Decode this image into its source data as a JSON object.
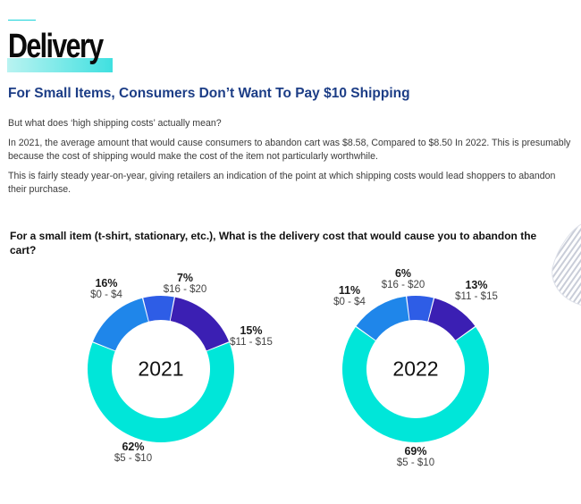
{
  "header": {
    "title": "Delivery",
    "headline": "For Small Items, Consumers Don’t Want To Pay $10 Shipping"
  },
  "body": {
    "p1": "But what does ‘high shipping costs’ actually mean?",
    "p2": "In 2021, the average amount that would cause consumers to abandon cart was $8.58, Compared to $8.50 In 2022. This is presumably because the cost of shipping would make the cost of the item not particularly worthwhile.",
    "p3": "This is fairly steady year-on-year, giving retailers an indication of the point at which shipping costs would lead shoppers to abandon their purchase.",
    "question": "For a small item (t-shirt, stationary, etc.), What is the delivery cost that would cause you to abandon the cart?"
  },
  "colors": {
    "accent": "#19d3d9",
    "headline": "#1c3d86",
    "slice_5_10": "#00e6d9",
    "slice_11_15": "#1f86ea",
    "slice_16_20": "#2e5de6",
    "slice_0_4": "#3b1fb3"
  },
  "chart_data": [
    {
      "type": "pie",
      "center_label": "2021",
      "slices": [
        {
          "label": "$5 - $10",
          "value": 62,
          "pct_label": "62%",
          "color": "#00e6d9"
        },
        {
          "label": "$11 - $15",
          "value": 15,
          "pct_label": "15%",
          "color": "#1f86ea"
        },
        {
          "label": "$16 - $20",
          "value": 7,
          "pct_label": "7%",
          "color": "#2e5de6"
        },
        {
          "label": "$0 - $4",
          "value": 16,
          "pct_label": "16%",
          "color": "#3b1fb3"
        }
      ]
    },
    {
      "type": "pie",
      "center_label": "2022",
      "slices": [
        {
          "label": "$5 - $10",
          "value": 69,
          "pct_label": "69%",
          "color": "#00e6d9"
        },
        {
          "label": "$11 - $15",
          "value": 13,
          "pct_label": "13%",
          "color": "#1f86ea"
        },
        {
          "label": "$16 - $20",
          "value": 6,
          "pct_label": "6%",
          "color": "#2e5de6"
        },
        {
          "label": "$0 - $4",
          "value": 11,
          "pct_label": "11%",
          "color": "#3b1fb3"
        }
      ]
    }
  ]
}
